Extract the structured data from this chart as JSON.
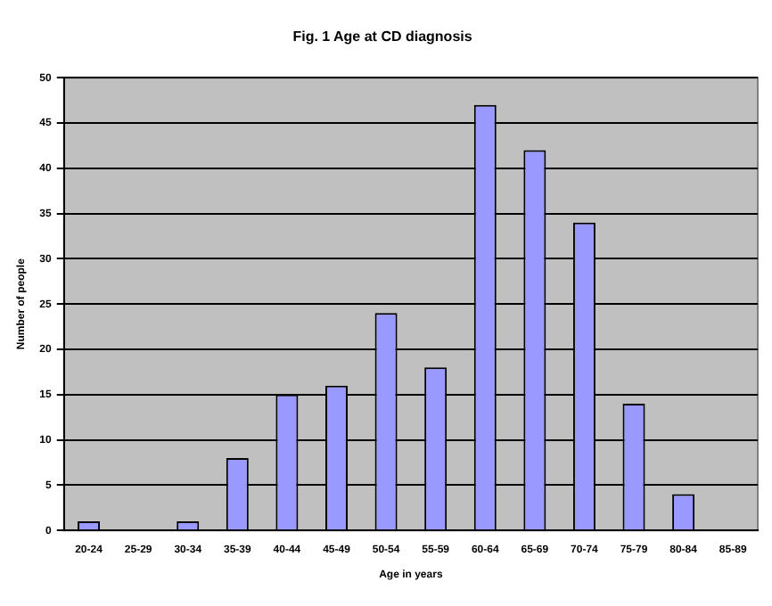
{
  "chart_data": {
    "type": "bar",
    "title": "Fig. 1 Age at CD diagnosis",
    "xlabel": "Age in years",
    "ylabel": "Number of people",
    "categories": [
      "20-24",
      "25-29",
      "30-34",
      "35-39",
      "40-44",
      "45-49",
      "50-54",
      "55-59",
      "60-64",
      "65-69",
      "70-74",
      "75-79",
      "80-84",
      "85-89"
    ],
    "values": [
      1,
      0,
      1,
      8,
      15,
      16,
      24,
      18,
      47,
      42,
      34,
      14,
      4,
      0
    ],
    "color": "#9999ff",
    "ylim": [
      0,
      50
    ],
    "yticks": [
      0,
      5,
      10,
      15,
      20,
      25,
      30,
      35,
      40,
      45,
      50
    ],
    "grid": "y",
    "legend": false
  }
}
